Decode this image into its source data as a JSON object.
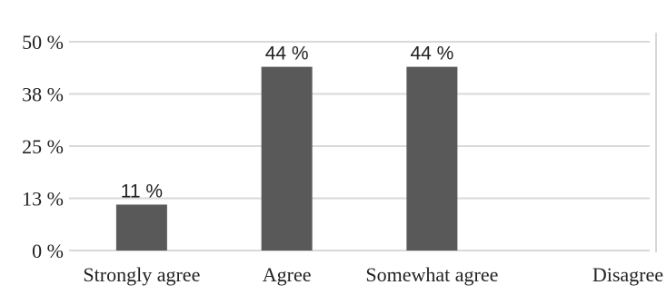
{
  "chart_data": {
    "type": "bar",
    "categories": [
      "Strongly agree",
      "Agree",
      "Somewhat agree",
      "Disagree"
    ],
    "values": [
      11,
      44,
      44,
      0
    ],
    "data_labels": [
      "11 %",
      "44 %",
      "44 %",
      ""
    ],
    "y_ticks": [
      {
        "value": 0,
        "label": "0 %"
      },
      {
        "value": 12.5,
        "label": "13 %"
      },
      {
        "value": 25,
        "label": "25 %"
      },
      {
        "value": 37.5,
        "label": "38 %"
      },
      {
        "value": 50,
        "label": "50 %"
      }
    ],
    "ylim": [
      0,
      50
    ],
    "grid": true,
    "legend": "none",
    "title": "",
    "xlabel": "",
    "ylabel": "",
    "colors": {
      "bar": "#595959",
      "grid": "#d9d9d9",
      "axis": "#c8c8c8"
    }
  }
}
